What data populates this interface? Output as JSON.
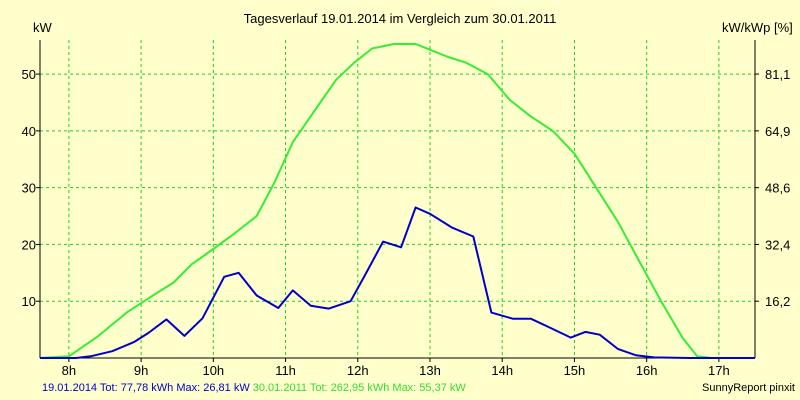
{
  "chart_data": {
    "type": "line",
    "title": "Tagesverlauf 19.01.2014 im Vergleich zum 30.01.2011",
    "ylabel": "kW",
    "ylabel_right": "kW/kWp [%]",
    "xlim": [
      7.6,
      17.5
    ],
    "ylim": [
      0,
      56
    ],
    "y_ticks": [
      10,
      20,
      30,
      40,
      50
    ],
    "y2_ticks": [
      "16,2",
      "32,4",
      "48,6",
      "64,9",
      "81,1"
    ],
    "x_ticks": [
      {
        "value": 8,
        "label": "8h"
      },
      {
        "value": 9,
        "label": "9h"
      },
      {
        "value": 10,
        "label": "10h"
      },
      {
        "value": 11,
        "label": "11h"
      },
      {
        "value": 12,
        "label": "12h"
      },
      {
        "value": 13,
        "label": "13h"
      },
      {
        "value": 14,
        "label": "14h"
      },
      {
        "value": 15,
        "label": "15h"
      },
      {
        "value": 16,
        "label": "16h"
      },
      {
        "value": 17,
        "label": "17h"
      }
    ],
    "grid": true,
    "series": [
      {
        "name": "19.01.2014",
        "color": "#0000cc",
        "x": [
          7.6,
          8.1,
          8.3,
          8.6,
          8.9,
          9.1,
          9.35,
          9.6,
          9.85,
          10.15,
          10.35,
          10.6,
          10.9,
          11.1,
          11.35,
          11.6,
          11.9,
          12.1,
          12.35,
          12.6,
          12.8,
          13.0,
          13.3,
          13.6,
          13.85,
          14.15,
          14.4,
          14.7,
          14.95,
          15.15,
          15.35,
          15.6,
          15.85,
          16.1,
          16.6,
          17.5
        ],
        "y": [
          0,
          0,
          0.3,
          1.2,
          2.8,
          4.4,
          6.8,
          3.9,
          7.0,
          14.3,
          15.0,
          11.0,
          8.8,
          11.9,
          9.2,
          8.7,
          10.0,
          14.6,
          20.5,
          19.5,
          26.5,
          25.4,
          23.0,
          21.4,
          8.0,
          6.9,
          6.9,
          5.1,
          3.6,
          4.6,
          4.1,
          1.6,
          0.5,
          0.1,
          0,
          0
        ]
      },
      {
        "name": "30.01.2011",
        "color": "#33ee33",
        "x": [
          7.6,
          8.0,
          8.4,
          8.8,
          9.1,
          9.45,
          9.7,
          10.0,
          10.3,
          10.6,
          10.85,
          11.1,
          11.4,
          11.7,
          11.95,
          12.2,
          12.5,
          12.8,
          13.0,
          13.25,
          13.5,
          13.8,
          14.1,
          14.4,
          14.7,
          15.0,
          15.3,
          15.6,
          15.9,
          16.2,
          16.5,
          16.7,
          16.9,
          17.5
        ],
        "y": [
          0,
          0.3,
          3.8,
          8.0,
          10.5,
          13.3,
          16.5,
          19.2,
          22.0,
          25.0,
          31.0,
          38.0,
          43.5,
          49.0,
          52.0,
          54.5,
          55.3,
          55.3,
          54.3,
          53.0,
          52.0,
          50.0,
          45.5,
          42.5,
          40.0,
          36.0,
          30.0,
          24.0,
          17.0,
          10.0,
          3.5,
          0.3,
          0,
          0
        ]
      }
    ]
  },
  "header": {
    "title": "Tagesverlauf 19.01.2014 im Vergleich zum 30.01.2011",
    "unit_left": "kW",
    "unit_right": "kW/kWp [%]"
  },
  "footer": {
    "series1_summary": "19.01.2014 Tot: 77,78 kWh Max: 26,81 kW",
    "series2_summary": "30.01.2011 Tot: 262,95 kWh Max: 55,37 kW",
    "credit": "SunnyReport pinxit"
  },
  "colors": {
    "background": "#ffffcc",
    "grid": "#22cc22",
    "series1": "#0000cc",
    "series2": "#33ee33"
  }
}
